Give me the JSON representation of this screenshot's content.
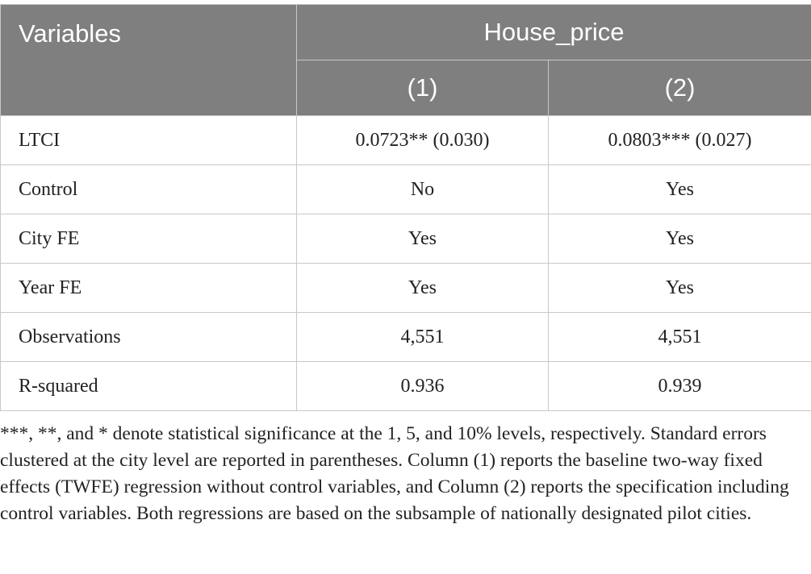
{
  "table": {
    "header": {
      "variables": "Variables",
      "group": "House_price",
      "columns": [
        "(1)",
        "(2)"
      ]
    },
    "rows": [
      [
        "LTCI",
        "0.0723** (0.030)",
        "0.0803*** (0.027)"
      ],
      [
        "Control",
        "No",
        "Yes"
      ],
      [
        "City FE",
        "Yes",
        "Yes"
      ],
      [
        "Year FE",
        "Yes",
        "Yes"
      ],
      [
        "Observations",
        "4,551",
        "4,551"
      ],
      [
        "R-squared",
        "0.936",
        "0.939"
      ]
    ],
    "note": "***, **, and * denote statistical significance at the 1, 5, and 10% levels, respectively. Standard errors clustered at the city level are reported in parentheses. Column (1) reports the baseline two-way fixed effects (TWFE) regression without control variables, and Column (2) reports the specification including control variables. Both regressions are based on the subsample of nationally designated pilot cities."
  }
}
